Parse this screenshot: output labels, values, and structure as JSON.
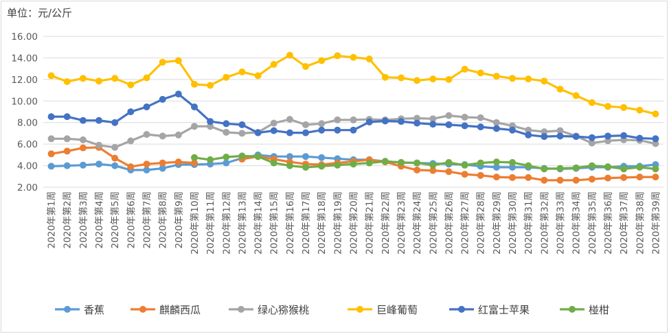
{
  "unit_label": "单位：元/公斤",
  "chart_data": {
    "type": "line",
    "title": "",
    "xlabel": "",
    "ylabel": "",
    "ylim": [
      2,
      16
    ],
    "yticks": [
      "2.00",
      "4.00",
      "6.00",
      "8.00",
      "10.00",
      "12.00",
      "14.00",
      "16.00"
    ],
    "grid": true,
    "legend_position": "bottom",
    "categories": [
      "2020年第1周",
      "2020年第2周",
      "2020年第3周",
      "2020年第4周",
      "2020年第5周",
      "2020年第6周",
      "2020年第7周",
      "2020年第8周",
      "2020年第9周",
      "2020年第10周",
      "2020年第11周",
      "2020年第12周",
      "2020年第13周",
      "2020年第14周",
      "2020年第15周",
      "2020年第16周",
      "2020年第17周",
      "2020年第18周",
      "2020年第19周",
      "2020年第20周",
      "2020年第21周",
      "2020年第22周",
      "2020年第23周",
      "2020年第24周",
      "2020年第25周",
      "2020年第26周",
      "2020年第27周",
      "2020年第28周",
      "2020年第29周",
      "2020年第30周",
      "2020年第31周",
      "2020年第32周",
      "2020年第33周",
      "2020年第34周",
      "2020年第35周",
      "2020年第36周",
      "2020年第37周",
      "2020年第38周",
      "2020年第39周"
    ],
    "series": [
      {
        "name": "香蕉",
        "color": "#5b9bd5",
        "values": [
          3.95,
          4.0,
          4.05,
          4.15,
          4.0,
          3.6,
          3.6,
          3.75,
          4.1,
          4.1,
          4.15,
          4.25,
          4.7,
          5.0,
          4.85,
          4.85,
          4.85,
          4.75,
          4.65,
          4.55,
          4.55,
          4.4,
          4.3,
          4.25,
          4.2,
          4.15,
          4.1,
          3.95,
          3.85,
          3.85,
          3.85,
          3.75,
          3.7,
          3.75,
          3.85,
          3.85,
          3.95,
          3.95,
          4.1
        ]
      },
      {
        "name": "麒麟西瓜",
        "color": "#ed7d31",
        "values": [
          5.1,
          5.35,
          5.65,
          5.7,
          4.7,
          3.9,
          4.15,
          4.25,
          4.35,
          4.25,
          null,
          null,
          4.6,
          4.85,
          4.6,
          4.35,
          4.15,
          4.1,
          4.25,
          4.4,
          4.55,
          4.35,
          3.95,
          3.6,
          3.55,
          3.45,
          3.2,
          3.1,
          2.95,
          2.9,
          2.9,
          2.65,
          2.65,
          2.65,
          2.75,
          2.85,
          2.9,
          2.95,
          2.95
        ]
      },
      {
        "name": "绿心猕猴桃",
        "color": "#a5a5a5",
        "values": [
          6.5,
          6.5,
          6.4,
          5.9,
          5.7,
          6.3,
          6.9,
          6.75,
          6.85,
          7.65,
          7.65,
          7.1,
          7.0,
          7.1,
          7.95,
          8.3,
          7.8,
          7.9,
          8.25,
          8.25,
          8.3,
          8.25,
          8.35,
          8.4,
          8.35,
          8.65,
          8.5,
          8.45,
          8.0,
          7.7,
          7.3,
          7.15,
          7.25,
          6.75,
          6.1,
          6.3,
          6.4,
          6.35,
          6.05
        ]
      },
      {
        "name": "巨峰葡萄",
        "color": "#ffc000",
        "values": [
          12.35,
          11.8,
          12.1,
          11.85,
          12.1,
          11.5,
          12.15,
          13.6,
          13.75,
          11.55,
          11.45,
          12.2,
          12.7,
          12.35,
          13.4,
          14.25,
          13.2,
          13.75,
          14.2,
          14.05,
          13.9,
          12.2,
          12.15,
          11.9,
          12.05,
          12.0,
          12.95,
          12.6,
          12.3,
          12.1,
          12.05,
          11.85,
          11.1,
          10.5,
          9.85,
          9.5,
          9.4,
          9.15,
          8.8
        ]
      },
      {
        "name": "红富士苹果",
        "color": "#4472c4",
        "values": [
          8.55,
          8.55,
          8.2,
          8.2,
          8.0,
          9.0,
          9.45,
          10.15,
          10.65,
          9.45,
          8.1,
          7.9,
          7.8,
          7.05,
          7.25,
          7.05,
          7.05,
          7.3,
          7.3,
          7.3,
          8.05,
          8.15,
          8.1,
          7.95,
          7.85,
          7.8,
          7.7,
          7.6,
          7.45,
          7.3,
          6.85,
          6.7,
          6.75,
          6.7,
          6.6,
          6.75,
          6.8,
          6.55,
          6.5
        ]
      },
      {
        "name": "椪柑",
        "color": "#70ad47",
        "values": [
          null,
          null,
          null,
          null,
          null,
          null,
          null,
          null,
          null,
          4.75,
          4.55,
          4.8,
          4.9,
          4.85,
          4.25,
          4.0,
          3.85,
          3.95,
          4.05,
          4.15,
          4.25,
          4.4,
          4.3,
          4.25,
          4.05,
          4.3,
          4.05,
          4.25,
          4.35,
          4.3,
          4.0,
          3.7,
          3.75,
          3.8,
          4.0,
          3.9,
          3.7,
          3.85,
          3.7
        ]
      }
    ]
  }
}
